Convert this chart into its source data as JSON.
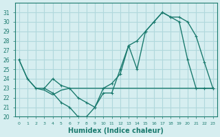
{
  "xlabel": "Humidex (Indice chaleur)",
  "ylabel": "",
  "bg_color": "#d6eef0",
  "grid_color": "#b0d8dc",
  "line_color": "#1a7a6e",
  "xlim": [
    -0.5,
    23.5
  ],
  "ylim": [
    20,
    32
  ],
  "yticks": [
    20,
    21,
    22,
    23,
    24,
    25,
    26,
    27,
    28,
    29,
    30,
    31
  ],
  "xticks": [
    0,
    1,
    2,
    3,
    4,
    5,
    6,
    7,
    8,
    9,
    10,
    11,
    12,
    13,
    14,
    15,
    16,
    17,
    18,
    19,
    20,
    21,
    22,
    23
  ],
  "line1_x": [
    0,
    1,
    2,
    3,
    4,
    5,
    6,
    7,
    8,
    9,
    10,
    11,
    12,
    13,
    14,
    15,
    16,
    17,
    18,
    19,
    20,
    21,
    22,
    23
  ],
  "line1_y": [
    26,
    24,
    23,
    23,
    22.5,
    21.5,
    21,
    20,
    20,
    21,
    22.5,
    22.5,
    25,
    27.5,
    25,
    29,
    30,
    31,
    30.5,
    30,
    26,
    23,
    23,
    23
  ],
  "line2_x": [
    0,
    1,
    2,
    3,
    4,
    5,
    6,
    7,
    8,
    9,
    10,
    11,
    12,
    13,
    14,
    15,
    16,
    17,
    18,
    19,
    20,
    21,
    22,
    23
  ],
  "line2_y": [
    26,
    24,
    23,
    22.8,
    22.3,
    22.8,
    23,
    23,
    23,
    23,
    23,
    23,
    23,
    23,
    23,
    23,
    23,
    23,
    23,
    23,
    23,
    23,
    23,
    23
  ],
  "line3_x": [
    3,
    4,
    5,
    6,
    7,
    8,
    9,
    10,
    11,
    12,
    13,
    14,
    15,
    16,
    17,
    18,
    19,
    20,
    21,
    22,
    23
  ],
  "line3_y": [
    23,
    24,
    23.3,
    23,
    22,
    21.5,
    21,
    23,
    23.5,
    24.5,
    27.5,
    28,
    29,
    30,
    31,
    30.5,
    30.5,
    30,
    28.5,
    25.7,
    23
  ]
}
